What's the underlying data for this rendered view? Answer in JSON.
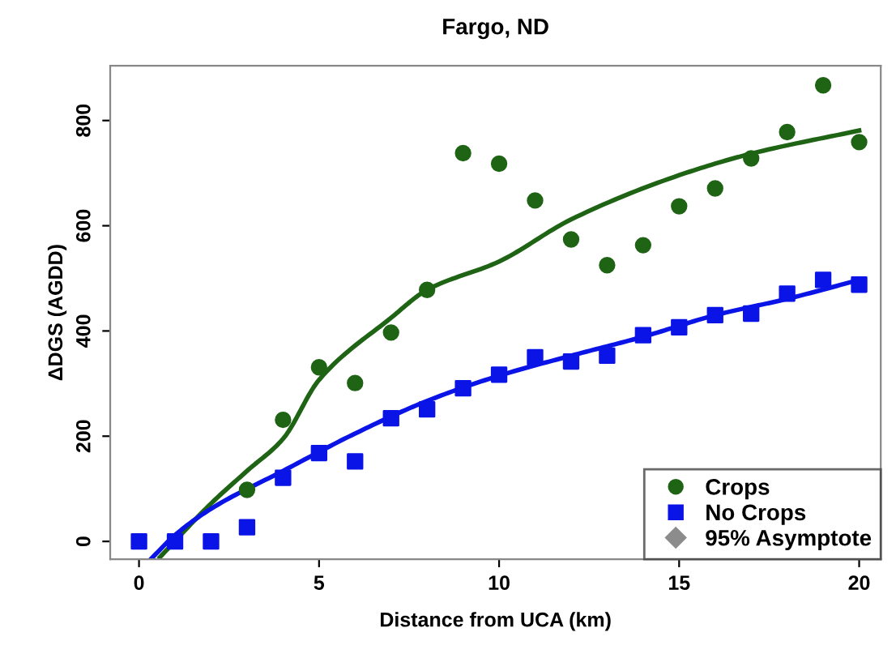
{
  "chart_data": {
    "type": "scatter",
    "title": "Fargo, ND",
    "xlabel": "Distance from UCA (km)",
    "ylabel": "ΔDGS (AGDD)",
    "xlim": [
      -0.8,
      20.6
    ],
    "ylim": [
      -34,
      904
    ],
    "xticks": [
      0,
      5,
      10,
      15,
      20
    ],
    "yticks": [
      0,
      200,
      400,
      600,
      800
    ],
    "grid": false,
    "legend": "bottom right",
    "series": [
      {
        "type": "line",
        "color": "#1e6414",
        "x": [
          0.58,
          2,
          3,
          4,
          5,
          7,
          8,
          10,
          12,
          15,
          17,
          20
        ],
        "values": [
          -30,
          72,
          134,
          195,
          307,
          425,
          478,
          532,
          612,
          696,
          737,
          781
        ]
      },
      {
        "type": "line",
        "color": "#0a14e6",
        "x": [
          0.35,
          1,
          2,
          4,
          6,
          8,
          10,
          12,
          14,
          16,
          18,
          20
        ],
        "values": [
          -32,
          12,
          62,
          134,
          205,
          267,
          315,
          353,
          389,
          430,
          461,
          497
        ]
      },
      {
        "name": "Crops",
        "color": "#1e6414",
        "marker": "circle",
        "x": [
          3,
          4,
          5,
          6,
          7,
          8,
          9,
          10,
          11,
          12,
          13,
          14,
          15,
          16,
          17,
          18,
          19,
          20
        ],
        "values": [
          98,
          231,
          331,
          301,
          397,
          478,
          738,
          718,
          648,
          574,
          525,
          563,
          637,
          671,
          728,
          778,
          867,
          759
        ]
      },
      {
        "name": "No Crops",
        "color": "#0a14e6",
        "marker": "square",
        "x": [
          0,
          1,
          2,
          3,
          4,
          5,
          6,
          7,
          8,
          9,
          10,
          11,
          12,
          13,
          14,
          15,
          16,
          17,
          18,
          19,
          20
        ],
        "values": [
          0,
          0,
          0,
          27,
          121,
          168,
          152,
          234,
          251,
          291,
          317,
          350,
          342,
          353,
          392,
          407,
          430,
          433,
          471,
          497,
          488
        ]
      },
      {
        "name": "95% Asymptote",
        "color": "#8c8c8c",
        "marker": "diamond"
      }
    ]
  }
}
